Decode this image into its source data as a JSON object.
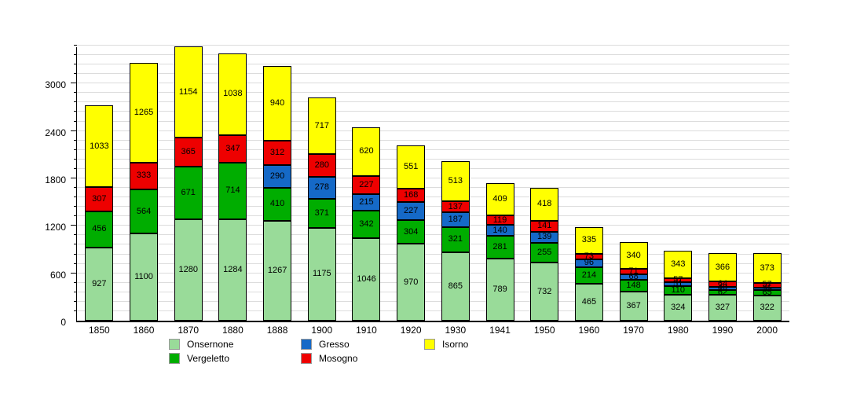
{
  "chart_data": {
    "type": "bar",
    "stacked": true,
    "title": "",
    "xlabel": "",
    "ylabel": "",
    "categories": [
      "1850",
      "1860",
      "1870",
      "1880",
      "1888",
      "1900",
      "1910",
      "1920",
      "1930",
      "1941",
      "1950",
      "1960",
      "1970",
      "1980",
      "1990",
      "2000"
    ],
    "series": [
      {
        "name": "Onsernone",
        "color": "#99db99",
        "values": [
          927,
          1100,
          1280,
          1284,
          1267,
          1175,
          1046,
          970,
          865,
          789,
          732,
          465,
          367,
          324,
          327,
          322
        ]
      },
      {
        "name": "Vergeletto",
        "color": "#00ad00",
        "values": [
          456,
          564,
          671,
          714,
          410,
          371,
          342,
          304,
          321,
          281,
          255,
          214,
          148,
          110,
          62,
          65
        ]
      },
      {
        "name": "Gresso",
        "color": "#1569c7",
        "values": [
          null,
          null,
          null,
          null,
          290,
          278,
          215,
          227,
          187,
          140,
          139,
          96,
          68,
          51,
          40,
          35
        ]
      },
      {
        "name": "Mosogno",
        "color": "#ee0000",
        "values": [
          307,
          333,
          365,
          347,
          312,
          280,
          227,
          168,
          137,
          119,
          141,
          73,
          71,
          57,
          64,
          57
        ]
      },
      {
        "name": "Isorno",
        "color": "#ffff00",
        "values": [
          1033,
          1265,
          1154,
          1038,
          940,
          717,
          620,
          551,
          513,
          409,
          418,
          335,
          340,
          343,
          366,
          373
        ]
      }
    ],
    "ylim": [
      0,
      3480
    ],
    "yticks": [
      0,
      600,
      1200,
      1800,
      2400,
      3000
    ],
    "minor_grid_step": 120,
    "grid": true,
    "value_labels": true,
    "legend_position": "bottom",
    "legend_columns": [
      [
        "Onsernone",
        "Vergeletto"
      ],
      [
        "Gresso",
        "Mosogno"
      ],
      [
        "Isorno"
      ]
    ]
  }
}
